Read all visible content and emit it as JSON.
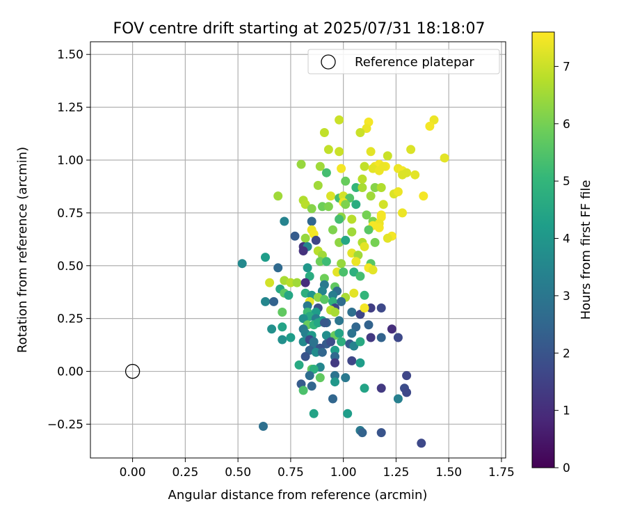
{
  "chart_data": {
    "type": "scatter",
    "title": "FOV centre drift starting at 2025/07/31 18:18:07",
    "xlabel": "Angular distance from reference (arcmin)",
    "ylabel": "Rotation from reference (arcmin)",
    "xlim": [
      -0.2,
      1.77
    ],
    "ylim": [
      -0.41,
      1.56
    ],
    "xticks": [
      0.0,
      0.25,
      0.5,
      0.75,
      1.0,
      1.25,
      1.5,
      1.75
    ],
    "xtick_labels": [
      "0.00",
      "0.25",
      "0.50",
      "0.75",
      "1.00",
      "1.25",
      "1.50",
      "1.75"
    ],
    "yticks": [
      -0.25,
      0.0,
      0.25,
      0.5,
      0.75,
      1.0,
      1.25,
      1.5
    ],
    "ytick_labels": [
      "−0.25",
      "0.00",
      "0.25",
      "0.50",
      "0.75",
      "1.00",
      "1.25",
      "1.50"
    ],
    "grid": true,
    "legend_position": "top-right",
    "legend": [
      {
        "label": "Reference platepar",
        "marker": "open-circle"
      }
    ],
    "reference_point": {
      "x": 0.0,
      "y": 0.0
    },
    "colorbar": {
      "label": "Hours from first FF file",
      "range": [
        0,
        7.6
      ],
      "ticks": [
        0,
        1,
        2,
        3,
        4,
        5,
        6,
        7
      ],
      "colormap": "viridis",
      "stops": [
        "#440154",
        "#482878",
        "#3e4989",
        "#31688e",
        "#26828e",
        "#1f9e89",
        "#35b779",
        "#6ece58",
        "#b5de2b",
        "#fde725"
      ]
    },
    "points": [
      [
        0.98,
        1.19,
        7.0
      ],
      [
        1.12,
        1.18,
        7.5
      ],
      [
        1.11,
        1.15,
        7.4
      ],
      [
        1.43,
        1.19,
        7.4
      ],
      [
        1.41,
        1.16,
        7.5
      ],
      [
        0.91,
        1.13,
        6.9
      ],
      [
        1.08,
        1.13,
        7.0
      ],
      [
        0.93,
        1.05,
        6.9
      ],
      [
        0.98,
        1.04,
        7.0
      ],
      [
        1.13,
        1.04,
        7.3
      ],
      [
        1.32,
        1.05,
        7.2
      ],
      [
        1.48,
        1.01,
        7.3
      ],
      [
        1.21,
        1.02,
        7.0
      ],
      [
        0.8,
        0.98,
        6.4
      ],
      [
        0.89,
        0.97,
        6.5
      ],
      [
        1.1,
        0.97,
        6.9
      ],
      [
        1.15,
        0.97,
        7.4
      ],
      [
        1.17,
        0.98,
        7.5
      ],
      [
        1.2,
        0.97,
        7.5
      ],
      [
        1.14,
        0.96,
        7.3
      ],
      [
        1.17,
        0.95,
        7.4
      ],
      [
        1.26,
        0.96,
        7.4
      ],
      [
        1.28,
        0.95,
        7.5
      ],
      [
        1.3,
        0.94,
        7.2
      ],
      [
        1.34,
        0.93,
        7.3
      ],
      [
        1.28,
        0.93,
        7.2
      ],
      [
        1.19,
        0.97,
        7.4
      ],
      [
        0.99,
        0.96,
        7.5
      ],
      [
        0.92,
        0.94,
        5.3
      ],
      [
        1.09,
        0.91,
        6.8
      ],
      [
        1.01,
        0.9,
        5.8
      ],
      [
        0.88,
        0.88,
        6.5
      ],
      [
        1.06,
        0.87,
        5.0
      ],
      [
        1.09,
        0.87,
        6.6
      ],
      [
        1.15,
        0.87,
        6.2
      ],
      [
        1.18,
        0.87,
        6.7
      ],
      [
        1.24,
        0.84,
        7.2
      ],
      [
        1.26,
        0.85,
        7.4
      ],
      [
        1.38,
        0.83,
        7.5
      ],
      [
        0.69,
        0.83,
        6.5
      ],
      [
        0.94,
        0.83,
        7.2
      ],
      [
        0.98,
        0.82,
        5.3
      ],
      [
        1.0,
        0.83,
        7.1
      ],
      [
        1.03,
        0.82,
        5.5
      ],
      [
        1.13,
        0.83,
        6.5
      ],
      [
        0.81,
        0.81,
        6.7
      ],
      [
        0.82,
        0.79,
        6.8
      ],
      [
        0.85,
        0.77,
        6.2
      ],
      [
        0.9,
        0.78,
        5.9
      ],
      [
        0.93,
        0.78,
        6.1
      ],
      [
        1.0,
        0.8,
        7.4
      ],
      [
        1.01,
        0.79,
        6.1
      ],
      [
        1.06,
        0.79,
        4.7
      ],
      [
        1.19,
        0.79,
        7.1
      ],
      [
        1.28,
        0.75,
        7.4
      ],
      [
        1.18,
        0.74,
        7.5
      ],
      [
        0.99,
        0.73,
        6.3
      ],
      [
        1.04,
        0.72,
        6.8
      ],
      [
        1.11,
        0.74,
        6.0
      ],
      [
        1.18,
        0.73,
        7.5
      ],
      [
        0.72,
        0.71,
        3.4
      ],
      [
        0.85,
        0.71,
        2.5
      ],
      [
        0.98,
        0.72,
        5.3
      ],
      [
        1.14,
        0.71,
        6.1
      ],
      [
        1.17,
        0.7,
        7.4
      ],
      [
        1.14,
        0.69,
        7.5
      ],
      [
        0.85,
        0.67,
        7.4
      ],
      [
        0.86,
        0.65,
        7.5
      ],
      [
        0.95,
        0.67,
        6.1
      ],
      [
        1.04,
        0.66,
        6.5
      ],
      [
        1.12,
        0.67,
        5.6
      ],
      [
        1.17,
        0.68,
        7.5
      ],
      [
        0.77,
        0.64,
        2.2
      ],
      [
        0.82,
        0.63,
        6.4
      ],
      [
        0.87,
        0.62,
        1.6
      ],
      [
        0.98,
        0.61,
        6.3
      ],
      [
        1.01,
        0.62,
        4.5
      ],
      [
        1.09,
        0.61,
        6.7
      ],
      [
        1.15,
        0.61,
        6.0
      ],
      [
        1.23,
        0.64,
        7.5
      ],
      [
        1.21,
        0.63,
        7.3
      ],
      [
        0.81,
        0.59,
        1.2
      ],
      [
        0.83,
        0.59,
        3.5
      ],
      [
        0.88,
        0.57,
        6.8
      ],
      [
        1.1,
        0.59,
        7.3
      ],
      [
        0.81,
        0.57,
        1.1
      ],
      [
        0.9,
        0.55,
        6.5
      ],
      [
        1.04,
        0.56,
        7.3
      ],
      [
        1.07,
        0.55,
        6.5
      ],
      [
        0.63,
        0.54,
        4.2
      ],
      [
        0.89,
        0.52,
        5.9
      ],
      [
        0.92,
        0.52,
        5.2
      ],
      [
        0.99,
        0.51,
        6.4
      ],
      [
        1.06,
        0.52,
        7.4
      ],
      [
        1.13,
        0.51,
        5.6
      ],
      [
        1.12,
        0.49,
        7.5
      ],
      [
        1.14,
        0.48,
        7.3
      ],
      [
        0.52,
        0.51,
        3.6
      ],
      [
        0.69,
        0.49,
        2.6
      ],
      [
        0.83,
        0.49,
        4.0
      ],
      [
        0.97,
        0.47,
        7.3
      ],
      [
        1.0,
        0.47,
        5.4
      ],
      [
        1.05,
        0.47,
        4.8
      ],
      [
        1.08,
        0.45,
        5.3
      ],
      [
        0.84,
        0.45,
        4.7
      ],
      [
        0.91,
        0.44,
        5.9
      ],
      [
        0.72,
        0.43,
        6.6
      ],
      [
        0.75,
        0.42,
        6.8
      ],
      [
        0.65,
        0.42,
        7.1
      ],
      [
        0.78,
        0.42,
        6.5
      ],
      [
        0.82,
        0.42,
        1.0
      ],
      [
        0.91,
        0.41,
        3.1
      ],
      [
        0.96,
        0.4,
        5.7
      ],
      [
        0.9,
        0.38,
        3.4
      ],
      [
        0.97,
        0.38,
        2.7
      ],
      [
        0.7,
        0.39,
        4.5
      ],
      [
        0.72,
        0.37,
        5.6
      ],
      [
        0.74,
        0.36,
        4.5
      ],
      [
        0.82,
        0.37,
        4.8
      ],
      [
        0.85,
        0.36,
        4.0
      ],
      [
        0.88,
        0.35,
        6.3
      ],
      [
        0.95,
        0.36,
        3.2
      ],
      [
        1.05,
        0.37,
        7.3
      ],
      [
        1.01,
        0.35,
        6.6
      ],
      [
        1.1,
        0.36,
        5.0
      ],
      [
        0.63,
        0.33,
        3.5
      ],
      [
        0.67,
        0.33,
        2.4
      ],
      [
        0.84,
        0.33,
        7.3
      ],
      [
        0.91,
        0.34,
        5.6
      ],
      [
        0.95,
        0.33,
        4.9
      ],
      [
        0.99,
        0.33,
        2.7
      ],
      [
        0.96,
        0.3,
        1.6
      ],
      [
        0.83,
        0.31,
        3.1
      ],
      [
        0.88,
        0.3,
        1.9
      ],
      [
        1.13,
        0.3,
        1.4
      ],
      [
        1.18,
        0.3,
        1.7
      ],
      [
        0.71,
        0.28,
        5.7
      ],
      [
        0.83,
        0.28,
        5.2
      ],
      [
        0.87,
        0.28,
        4.2
      ],
      [
        0.94,
        0.29,
        6.8
      ],
      [
        0.96,
        0.28,
        6.6
      ],
      [
        1.04,
        0.28,
        2.8
      ],
      [
        1.08,
        0.27,
        1.6
      ],
      [
        0.84,
        0.26,
        4.6
      ],
      [
        0.81,
        0.25,
        3.8
      ],
      [
        0.87,
        0.25,
        3.2
      ],
      [
        0.9,
        0.24,
        4.3
      ],
      [
        0.92,
        0.23,
        2.4
      ],
      [
        0.98,
        0.24,
        3.0
      ],
      [
        1.1,
        0.3,
        7.5
      ],
      [
        0.83,
        0.22,
        5.8
      ],
      [
        0.86,
        0.22,
        5.0
      ],
      [
        0.88,
        0.23,
        4.5
      ],
      [
        0.91,
        0.23,
        2.1
      ],
      [
        1.06,
        0.21,
        2.5
      ],
      [
        1.12,
        0.22,
        2.4
      ],
      [
        0.66,
        0.2,
        3.8
      ],
      [
        0.71,
        0.21,
        4.4
      ],
      [
        0.81,
        0.2,
        3.1
      ],
      [
        1.23,
        0.2,
        1.0
      ],
      [
        0.82,
        0.18,
        3.3
      ],
      [
        0.85,
        0.17,
        4.1
      ],
      [
        0.92,
        0.17,
        3.7
      ],
      [
        0.96,
        0.17,
        5.8
      ],
      [
        0.98,
        0.18,
        4.4
      ],
      [
        1.04,
        0.18,
        2.9
      ],
      [
        1.13,
        0.16,
        1.3
      ],
      [
        1.18,
        0.16,
        2.4
      ],
      [
        1.26,
        0.16,
        1.7
      ],
      [
        0.71,
        0.15,
        3.8
      ],
      [
        0.75,
        0.16,
        4.2
      ],
      [
        0.81,
        0.14,
        3.6
      ],
      [
        0.84,
        0.15,
        1.7
      ],
      [
        0.86,
        0.14,
        2.9
      ],
      [
        0.92,
        0.13,
        2.2
      ],
      [
        0.94,
        0.14,
        1.8
      ],
      [
        0.99,
        0.14,
        4.8
      ],
      [
        1.03,
        0.13,
        2.2
      ],
      [
        1.05,
        0.12,
        3.4
      ],
      [
        1.08,
        0.14,
        4.6
      ],
      [
        0.86,
        0.12,
        2.9
      ],
      [
        0.89,
        0.11,
        2.0
      ],
      [
        0.96,
        0.1,
        4.2
      ],
      [
        0.84,
        0.1,
        2.4
      ],
      [
        0.87,
        0.09,
        3.7
      ],
      [
        0.9,
        0.09,
        2.5
      ],
      [
        0.96,
        0.07,
        2.6
      ],
      [
        0.82,
        0.07,
        2.0
      ],
      [
        0.96,
        0.04,
        1.3
      ],
      [
        1.04,
        0.05,
        1.6
      ],
      [
        1.08,
        0.04,
        4.2
      ],
      [
        0.79,
        0.03,
        4.6
      ],
      [
        0.85,
        0.01,
        5.7
      ],
      [
        0.89,
        0.02,
        3.5
      ],
      [
        0.86,
        0.01,
        4.8
      ],
      [
        0.96,
        -0.02,
        2.9
      ],
      [
        1.01,
        -0.03,
        3.1
      ],
      [
        0.84,
        -0.02,
        2.7
      ],
      [
        1.3,
        -0.02,
        1.6
      ],
      [
        0.89,
        -0.03,
        5.7
      ],
      [
        0.8,
        -0.06,
        2.2
      ],
      [
        0.85,
        -0.07,
        2.5
      ],
      [
        0.96,
        -0.05,
        4.0
      ],
      [
        0.81,
        -0.09,
        5.4
      ],
      [
        1.1,
        -0.08,
        4.4
      ],
      [
        1.18,
        -0.08,
        1.3
      ],
      [
        1.29,
        -0.08,
        1.8
      ],
      [
        1.3,
        -0.1,
        1.7
      ],
      [
        0.95,
        -0.13,
        2.5
      ],
      [
        1.26,
        -0.13,
        3.3
      ],
      [
        0.86,
        -0.2,
        4.4
      ],
      [
        1.02,
        -0.2,
        4.2
      ],
      [
        0.62,
        -0.26,
        2.8
      ],
      [
        1.08,
        -0.28,
        3.1
      ],
      [
        1.09,
        -0.29,
        2.4
      ],
      [
        1.18,
        -0.29,
        2.0
      ],
      [
        1.37,
        -0.34,
        1.7
      ]
    ]
  }
}
